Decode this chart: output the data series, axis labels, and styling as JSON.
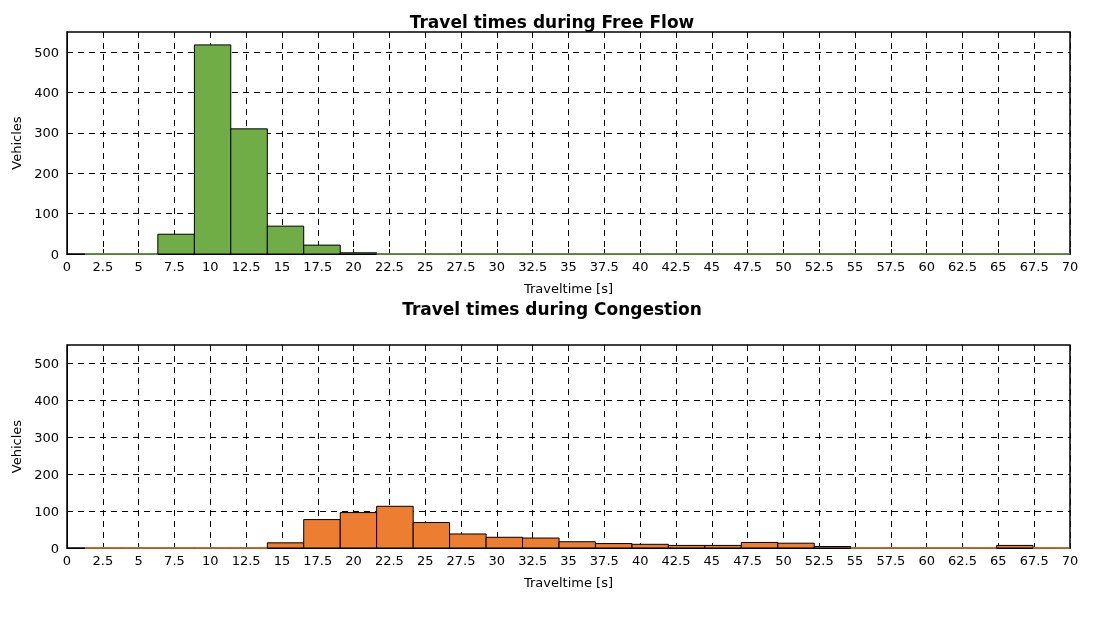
{
  "chart_data": [
    {
      "type": "histogram",
      "title": "Travel times during Free Flow",
      "xlabel": "Traveltime [s]",
      "ylabel": "Vehicles",
      "bins": [
        1.25,
        3.8,
        6.34,
        8.89,
        11.43,
        13.98,
        16.52,
        19.07,
        21.61,
        24.16,
        26.7,
        29.25,
        31.79,
        34.34,
        36.88,
        39.43,
        41.97,
        44.52,
        47.06,
        49.61,
        52.15,
        54.7,
        57.24,
        59.79,
        62.33,
        64.88,
        67.42,
        69.97
      ],
      "values": [
        0,
        0,
        49,
        518,
        310,
        69,
        22,
        3,
        0,
        0,
        0,
        0,
        0,
        0,
        0,
        0,
        0,
        0,
        0,
        0,
        0,
        0,
        0,
        0,
        0,
        0,
        0
      ],
      "color": "#70ad47",
      "xlim": [
        0,
        70
      ],
      "xticks": [
        0,
        2.5,
        5,
        7.5,
        10,
        12.5,
        15,
        17.5,
        20,
        22.5,
        25,
        27.5,
        30,
        32.5,
        35,
        37.5,
        40,
        42.5,
        45,
        47.5,
        50,
        52.5,
        55,
        57.5,
        60,
        62.5,
        65,
        67.5,
        70
      ],
      "ylim": [
        0,
        550
      ],
      "yticks": [
        0,
        100,
        200,
        300,
        400,
        500
      ],
      "grid": true
    },
    {
      "type": "histogram",
      "title": "Travel times during Congestion",
      "xlabel": "Traveltime [s]",
      "ylabel": "Vehicles",
      "bins": [
        1.25,
        3.8,
        6.34,
        8.89,
        11.43,
        13.98,
        16.52,
        19.07,
        21.61,
        24.16,
        26.7,
        29.25,
        31.79,
        34.34,
        36.88,
        39.43,
        41.97,
        44.52,
        47.06,
        49.61,
        52.15,
        54.7,
        57.24,
        59.79,
        62.33,
        64.88,
        67.42,
        69.97
      ],
      "values": [
        0,
        0,
        0,
        0,
        0,
        14,
        77,
        96,
        113,
        69,
        38,
        29,
        27,
        17,
        12,
        10,
        7,
        7,
        15,
        13,
        4,
        0,
        0,
        0,
        0,
        7,
        0
      ],
      "color": "#ed7d31",
      "xlim": [
        0,
        70
      ],
      "xticks": [
        0,
        2.5,
        5,
        7.5,
        10,
        12.5,
        15,
        17.5,
        20,
        22.5,
        25,
        27.5,
        30,
        32.5,
        35,
        37.5,
        40,
        42.5,
        45,
        47.5,
        50,
        52.5,
        55,
        57.5,
        60,
        62.5,
        65,
        67.5,
        70
      ],
      "ylim": [
        0,
        550
      ],
      "yticks": [
        0,
        100,
        200,
        300,
        400,
        500
      ],
      "grid": true
    }
  ]
}
